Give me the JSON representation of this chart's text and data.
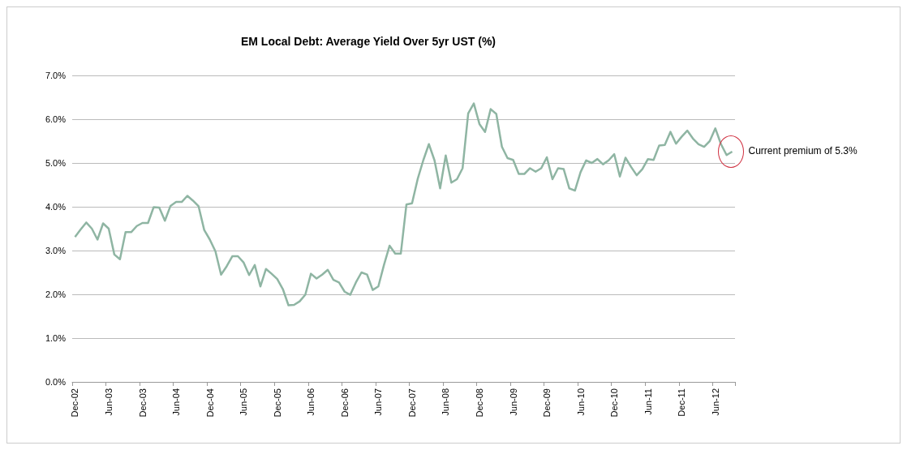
{
  "chart_data": {
    "type": "line",
    "title": "EM Local Debt: Average Yield Over 5yr UST (%)",
    "categories": [
      "Dec-02",
      null,
      null,
      null,
      null,
      null,
      "Jun-03",
      null,
      null,
      null,
      null,
      null,
      "Dec-03",
      null,
      null,
      null,
      null,
      null,
      "Jun-04",
      null,
      null,
      null,
      null,
      null,
      "Dec-04",
      null,
      null,
      null,
      null,
      null,
      "Jun-05",
      null,
      null,
      null,
      null,
      null,
      "Dec-05",
      null,
      null,
      null,
      null,
      null,
      "Jun-06",
      null,
      null,
      null,
      null,
      null,
      "Dec-06",
      null,
      null,
      null,
      null,
      null,
      "Jun-07",
      null,
      null,
      null,
      null,
      null,
      "Dec-07",
      null,
      null,
      null,
      null,
      null,
      "Jun-08",
      null,
      null,
      null,
      null,
      null,
      "Dec-08",
      null,
      null,
      null,
      null,
      null,
      "Jun-09",
      null,
      null,
      null,
      null,
      null,
      "Dec-09",
      null,
      null,
      null,
      null,
      null,
      "Jun-10",
      null,
      null,
      null,
      null,
      null,
      "Dec-10",
      null,
      null,
      null,
      null,
      null,
      "Jun-11",
      null,
      null,
      null,
      null,
      null,
      "Dec-11",
      null,
      null,
      null,
      null,
      null,
      "Jun-12",
      null,
      null,
      null
    ],
    "series": [
      {
        "color": "#8fb5a3",
        "values": [
          3.31,
          3.48,
          3.64,
          3.5,
          3.25,
          3.62,
          3.5,
          2.91,
          2.8,
          3.42,
          3.42,
          3.56,
          3.63,
          3.63,
          3.99,
          3.98,
          3.68,
          4.02,
          4.11,
          4.11,
          4.25,
          4.14,
          4.01,
          3.47,
          3.25,
          2.98,
          2.45,
          2.64,
          2.87,
          2.87,
          2.73,
          2.44,
          2.67,
          2.18,
          2.58,
          2.47,
          2.35,
          2.12,
          1.75,
          1.76,
          1.84,
          1.99,
          2.47,
          2.36,
          2.45,
          2.56,
          2.33,
          2.27,
          2.06,
          1.99,
          2.27,
          2.5,
          2.45,
          2.1,
          2.18,
          2.67,
          3.11,
          2.93,
          2.93,
          4.05,
          4.08,
          4.63,
          5.06,
          5.43,
          5.06,
          4.42,
          5.17,
          4.55,
          4.63,
          4.88,
          6.13,
          6.36,
          5.89,
          5.71,
          6.23,
          6.12,
          5.37,
          5.11,
          5.07,
          4.75,
          4.75,
          4.88,
          4.8,
          4.88,
          5.13,
          4.63,
          4.88,
          4.86,
          4.42,
          4.37,
          4.79,
          5.06,
          5.0,
          5.09,
          4.97,
          5.06,
          5.2,
          4.69,
          5.12,
          4.91,
          4.72,
          4.86,
          5.09,
          5.07,
          5.4,
          5.41,
          5.71,
          5.44,
          5.6,
          5.74,
          5.56,
          5.43,
          5.37,
          5.5,
          5.79,
          5.43,
          5.18,
          5.26
        ]
      }
    ],
    "ylim": [
      0,
      7
    ],
    "yticks": [
      {
        "value": 0,
        "label": "0.0%"
      },
      {
        "value": 1,
        "label": "1.0%"
      },
      {
        "value": 2,
        "label": "2.0%"
      },
      {
        "value": 3,
        "label": "3.0%"
      },
      {
        "value": 4,
        "label": "4.0%"
      },
      {
        "value": 5,
        "label": "5.0%"
      },
      {
        "value": 6,
        "label": "6.0%"
      },
      {
        "value": 7,
        "label": "7.0%"
      }
    ],
    "grid": "y",
    "marker": "none",
    "line_style": "solid",
    "annotations": [
      "Current premium of 5.3%"
    ]
  }
}
